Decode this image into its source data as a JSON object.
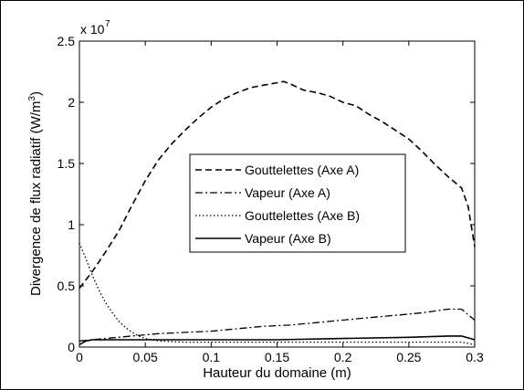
{
  "chart_data": {
    "type": "line",
    "title": "",
    "xlabel": "Hauteur du domaine (m)",
    "ylabel": "Divergence de flux radiatif (W/m",
    "ylabel_sup": "3",
    "ylabel_tail": ")",
    "y_multiplier": "x 10",
    "y_multiplier_exp": "7",
    "xlim": [
      0,
      0.3
    ],
    "ylim": [
      0,
      2.5
    ],
    "x_ticks": [
      0,
      0.05,
      0.1,
      0.15,
      0.2,
      0.25,
      0.3
    ],
    "x_tick_labels": [
      "0",
      "0.05",
      "0.1",
      "0.15",
      "0.2",
      "0.25",
      "0.3"
    ],
    "y_ticks": [
      0,
      0.5,
      1,
      1.5,
      2,
      2.5
    ],
    "y_tick_labels": [
      "0",
      "0.5",
      "1",
      "1.5",
      "2",
      "2.5"
    ],
    "grid": false,
    "legend_position": "center-right",
    "series": [
      {
        "name": "Gouttelettes (Axe A)",
        "style": "dashed",
        "color": "#000000",
        "x": [
          0,
          0.01,
          0.02,
          0.03,
          0.04,
          0.05,
          0.06,
          0.07,
          0.08,
          0.09,
          0.1,
          0.11,
          0.12,
          0.13,
          0.14,
          0.15,
          0.155,
          0.16,
          0.17,
          0.18,
          0.19,
          0.2,
          0.21,
          0.22,
          0.23,
          0.24,
          0.25,
          0.26,
          0.27,
          0.28,
          0.29,
          0.295,
          0.3
        ],
        "y": [
          0.48,
          0.62,
          0.78,
          0.95,
          1.16,
          1.36,
          1.53,
          1.66,
          1.77,
          1.87,
          1.96,
          2.03,
          2.08,
          2.12,
          2.14,
          2.16,
          2.17,
          2.15,
          2.1,
          2.08,
          2.05,
          2.0,
          1.97,
          1.9,
          1.84,
          1.77,
          1.7,
          1.6,
          1.49,
          1.39,
          1.3,
          1.15,
          0.82
        ]
      },
      {
        "name": "Vapeur (Axe A)",
        "style": "dashdot",
        "color": "#000000",
        "x": [
          0,
          0.02,
          0.04,
          0.05,
          0.06,
          0.08,
          0.1,
          0.12,
          0.14,
          0.16,
          0.18,
          0.2,
          0.22,
          0.24,
          0.26,
          0.28,
          0.29,
          0.3
        ],
        "y": [
          0.05,
          0.07,
          0.09,
          0.1,
          0.11,
          0.12,
          0.13,
          0.15,
          0.17,
          0.18,
          0.2,
          0.22,
          0.24,
          0.26,
          0.28,
          0.31,
          0.31,
          0.22
        ]
      },
      {
        "name": "Gouttelettes (Axe B)",
        "style": "dotted",
        "color": "#000000",
        "x": [
          0,
          0.005,
          0.01,
          0.015,
          0.02,
          0.025,
          0.03,
          0.035,
          0.04,
          0.045,
          0.05,
          0.06,
          0.08,
          0.1,
          0.15,
          0.2,
          0.25,
          0.28,
          0.29,
          0.3
        ],
        "y": [
          0.85,
          0.72,
          0.58,
          0.46,
          0.36,
          0.28,
          0.21,
          0.16,
          0.12,
          0.09,
          0.07,
          0.05,
          0.04,
          0.04,
          0.04,
          0.04,
          0.04,
          0.04,
          0.04,
          0.02
        ]
      },
      {
        "name": "Vapeur (Axe B)",
        "style": "solid",
        "color": "#000000",
        "x": [
          0,
          0.005,
          0.01,
          0.02,
          0.04,
          0.06,
          0.1,
          0.15,
          0.2,
          0.25,
          0.28,
          0.29,
          0.3
        ],
        "y": [
          0.02,
          0.05,
          0.06,
          0.06,
          0.06,
          0.06,
          0.06,
          0.06,
          0.07,
          0.08,
          0.09,
          0.09,
          0.06
        ]
      }
    ]
  }
}
